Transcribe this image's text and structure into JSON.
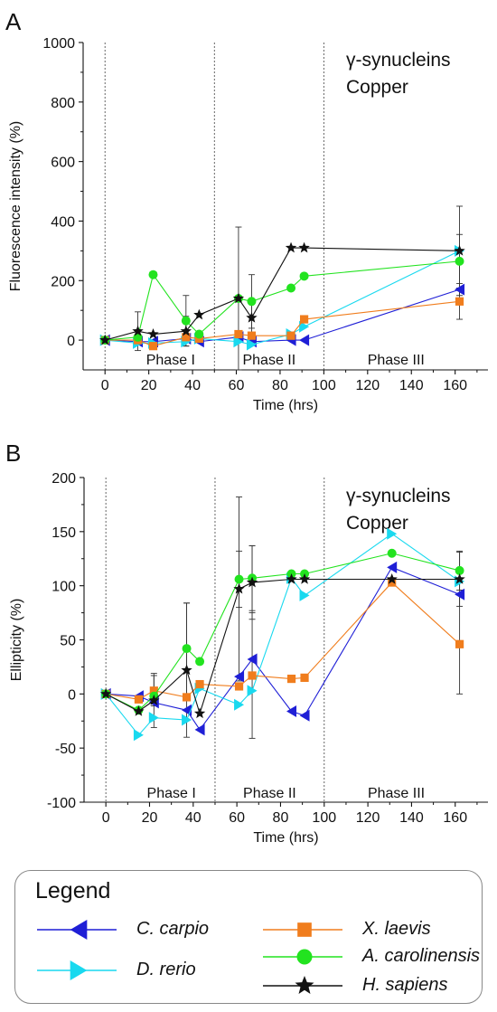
{
  "chart_data": [
    {
      "type": "line",
      "panel_label": "A",
      "annotation": [
        "γ-synucleins",
        "Copper"
      ],
      "xlabel": "Time (hrs)",
      "ylabel": "Fluorescence intensity (%)",
      "xlim": [
        -10,
        175
      ],
      "ylim": [
        -100,
        1000
      ],
      "xticks": [
        0,
        20,
        40,
        60,
        80,
        100,
        120,
        140,
        160
      ],
      "yticks": [
        0,
        200,
        400,
        600,
        800,
        1000
      ],
      "phase_boundaries": [
        0,
        50,
        100
      ],
      "phases": [
        {
          "label": "Phase I",
          "x_center": 30
        },
        {
          "label": "Phase II",
          "x_center": 75
        },
        {
          "label": "Phase III",
          "x_center": 133
        }
      ],
      "series": [
        {
          "name": "C. carpio",
          "color": "#1f1fd6",
          "marker": "tri-left",
          "x": [
            0,
            15,
            22,
            37,
            43,
            61,
            67,
            85,
            91,
            162
          ],
          "y": [
            0,
            -5,
            -5,
            5,
            -5,
            10,
            -5,
            0,
            0,
            170
          ],
          "err": [
            null,
            null,
            null,
            null,
            null,
            null,
            null,
            null,
            null,
            null
          ]
        },
        {
          "name": "D. rerio",
          "color": "#19d9ef",
          "marker": "tri-right",
          "x": [
            0,
            15,
            22,
            37,
            43,
            61,
            67,
            85,
            91,
            162
          ],
          "y": [
            0,
            -10,
            -10,
            -5,
            5,
            -5,
            -15,
            20,
            45,
            300
          ],
          "err": [
            null,
            null,
            null,
            null,
            null,
            null,
            null,
            null,
            null,
            null
          ]
        },
        {
          "name": "X. laevis",
          "color": "#f07d1d",
          "marker": "square",
          "x": [
            0,
            15,
            22,
            37,
            43,
            61,
            67,
            85,
            91,
            162
          ],
          "y": [
            0,
            0,
            -20,
            10,
            5,
            20,
            15,
            15,
            70,
            130
          ],
          "err": [
            null,
            null,
            null,
            null,
            null,
            null,
            null,
            null,
            null,
            60
          ]
        },
        {
          "name": "A. carolinensis",
          "color": "#22e31f",
          "marker": "circle",
          "x": [
            0,
            15,
            22,
            37,
            43,
            61,
            67,
            85,
            91,
            162
          ],
          "y": [
            0,
            10,
            220,
            65,
            20,
            140,
            130,
            175,
            215,
            265
          ],
          "err": [
            null,
            null,
            null,
            85,
            null,
            null,
            90,
            null,
            null,
            90
          ]
        },
        {
          "name": "H. sapiens",
          "color": "#111111",
          "marker": "star",
          "x": [
            0,
            15,
            22,
            37,
            43,
            61,
            67,
            85,
            91,
            162
          ],
          "y": [
            0,
            30,
            20,
            30,
            85,
            140,
            75,
            310,
            310,
            300
          ],
          "err": [
            null,
            65,
            null,
            50,
            null,
            240,
            50,
            null,
            null,
            150
          ]
        }
      ]
    },
    {
      "type": "line",
      "panel_label": "B",
      "annotation": [
        "γ-synucleins",
        "Copper"
      ],
      "xlabel": "Time (hrs)",
      "ylabel": "Ellipticity (%)",
      "xlim": [
        -10,
        175
      ],
      "ylim": [
        -100,
        200
      ],
      "xticks": [
        0,
        20,
        40,
        60,
        80,
        100,
        120,
        140,
        160
      ],
      "yticks": [
        -100,
        -50,
        0,
        50,
        100,
        150,
        200
      ],
      "phase_boundaries": [
        0,
        50,
        100
      ],
      "phases": [
        {
          "label": "Phase I",
          "x_center": 30
        },
        {
          "label": "Phase II",
          "x_center": 75
        },
        {
          "label": "Phase III",
          "x_center": 133
        }
      ],
      "series": [
        {
          "name": "C. carpio",
          "color": "#1f1fd6",
          "marker": "tri-left",
          "x": [
            0,
            15,
            22,
            37,
            43,
            61,
            67,
            85,
            91,
            131,
            162
          ],
          "y": [
            0,
            -2,
            -8,
            -15,
            -33,
            16,
            32,
            -16,
            -20,
            117,
            92
          ],
          "err": [
            null,
            null,
            null,
            null,
            null,
            null,
            null,
            null,
            null,
            null,
            null
          ]
        },
        {
          "name": "D. rerio",
          "color": "#19d9ef",
          "marker": "tri-right",
          "x": [
            0,
            15,
            22,
            37,
            43,
            61,
            67,
            85,
            91,
            131,
            162
          ],
          "y": [
            0,
            -38,
            -22,
            -24,
            5,
            -10,
            3,
            107,
            91,
            148,
            104
          ],
          "err": [
            null,
            null,
            null,
            null,
            null,
            null,
            null,
            null,
            null,
            null,
            null
          ]
        },
        {
          "name": "X. laevis",
          "color": "#f07d1d",
          "marker": "square",
          "x": [
            0,
            15,
            22,
            37,
            43,
            61,
            67,
            85,
            91,
            131,
            162
          ],
          "y": [
            0,
            -5,
            3,
            -3,
            9,
            7,
            17,
            14,
            15,
            103,
            46
          ],
          "err": [
            null,
            null,
            14,
            null,
            null,
            null,
            58,
            null,
            null,
            null,
            46
          ]
        },
        {
          "name": "A. carolinensis",
          "color": "#22e31f",
          "marker": "circle",
          "x": [
            0,
            15,
            22,
            37,
            43,
            61,
            67,
            85,
            91,
            131,
            162
          ],
          "y": [
            0,
            -15,
            -2,
            42,
            30,
            106,
            107,
            111,
            111,
            130,
            114
          ],
          "err": [
            null,
            null,
            null,
            42,
            null,
            26,
            30,
            null,
            null,
            null,
            18
          ]
        },
        {
          "name": "H. sapiens",
          "color": "#111111",
          "marker": "star",
          "x": [
            0,
            15,
            22,
            37,
            43,
            61,
            67,
            85,
            91,
            131,
            162
          ],
          "y": [
            0,
            -16,
            -6,
            22,
            -18,
            97,
            103,
            106,
            106,
            106,
            106
          ],
          "err": [
            null,
            null,
            25,
            62,
            null,
            85,
            34,
            null,
            null,
            null,
            25
          ]
        }
      ]
    }
  ],
  "legend": {
    "title": "Legend",
    "entries": [
      {
        "name": "C. carpio",
        "color": "#1f1fd6",
        "marker": "tri-left"
      },
      {
        "name": "X. laevis",
        "color": "#f07d1d",
        "marker": "square"
      },
      {
        "name": "D. rerio",
        "color": "#19d9ef",
        "marker": "tri-right"
      },
      {
        "name": "A. carolinensis",
        "color": "#22e31f",
        "marker": "circle"
      },
      {
        "name": "H. sapiens",
        "color": "#111111",
        "marker": "star"
      }
    ]
  }
}
